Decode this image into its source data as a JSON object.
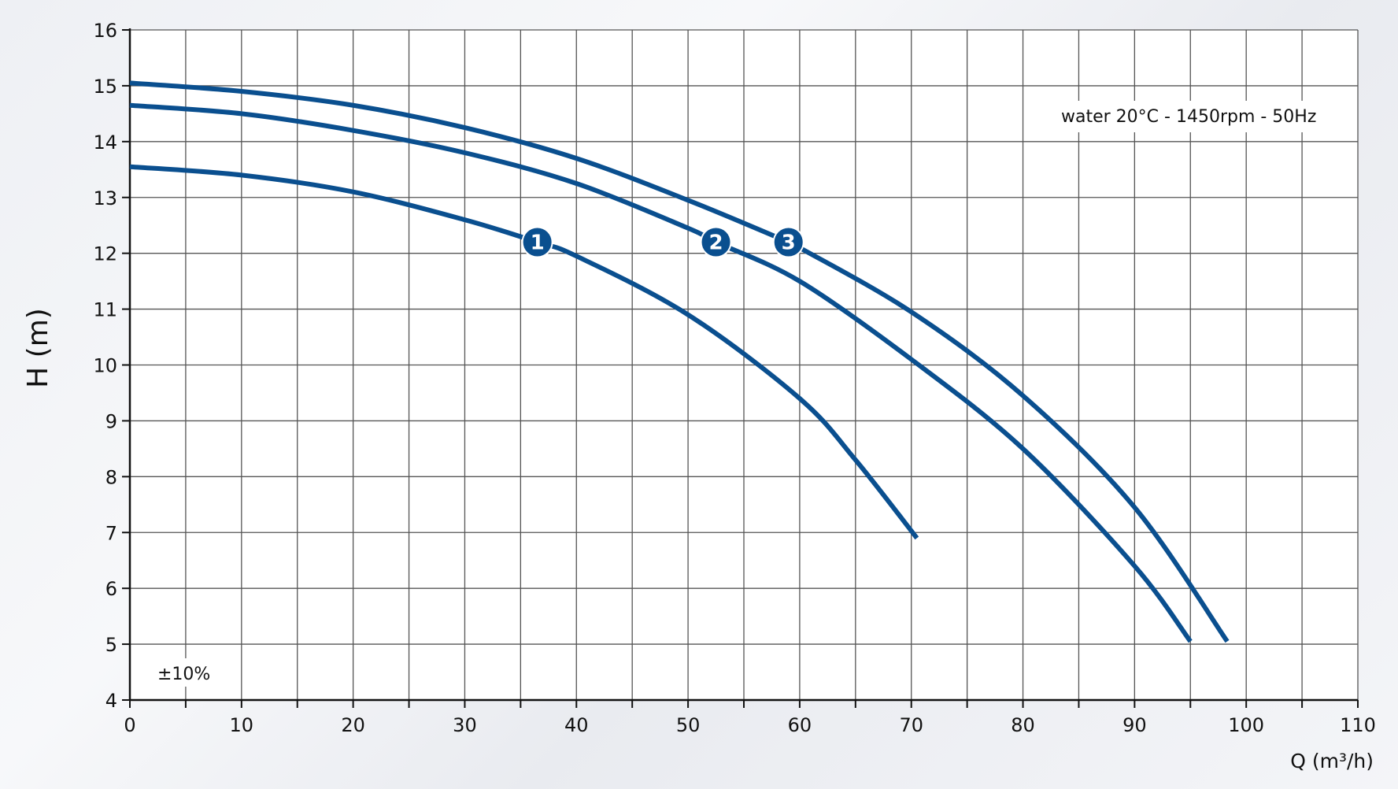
{
  "chart_data": {
    "type": "line",
    "xlabel": "Q (m³/h)",
    "ylabel": "H (m)",
    "xlim": [
      0,
      110
    ],
    "ylim": [
      4,
      16
    ],
    "x_ticks": [
      0,
      10,
      20,
      30,
      40,
      50,
      60,
      70,
      80,
      90,
      100,
      110
    ],
    "y_ticks": [
      4,
      5,
      6,
      7,
      8,
      9,
      10,
      11,
      12,
      13,
      14,
      15,
      16
    ],
    "grid": true,
    "line_color": "#0a4f8f",
    "series": [
      {
        "name": "1",
        "x": [
          0,
          10,
          20,
          30,
          36.5,
          40,
          50,
          60,
          65,
          70.5
        ],
        "y": [
          13.55,
          13.4,
          13.1,
          12.6,
          12.2,
          11.95,
          10.9,
          9.4,
          8.3,
          6.9
        ],
        "marker_at": [
          36.5,
          12.2
        ]
      },
      {
        "name": "2",
        "x": [
          0,
          10,
          20,
          30,
          40,
          50,
          52.5,
          60,
          70,
          80,
          90,
          95
        ],
        "y": [
          14.65,
          14.5,
          14.2,
          13.8,
          13.25,
          12.45,
          12.2,
          11.5,
          10.1,
          8.5,
          6.4,
          5.05
        ],
        "marker_at": [
          52.5,
          12.2
        ]
      },
      {
        "name": "3",
        "x": [
          0,
          10,
          20,
          30,
          40,
          50,
          59,
          60,
          70,
          80,
          90,
          98.3
        ],
        "y": [
          15.05,
          14.9,
          14.65,
          14.25,
          13.7,
          12.95,
          12.2,
          12.1,
          10.95,
          9.45,
          7.45,
          5.05
        ],
        "marker_at": [
          59,
          12.2
        ]
      }
    ],
    "annotations": {
      "conditions": "water 20°C - 1450rpm - 50Hz",
      "tolerance": "±10%"
    }
  }
}
